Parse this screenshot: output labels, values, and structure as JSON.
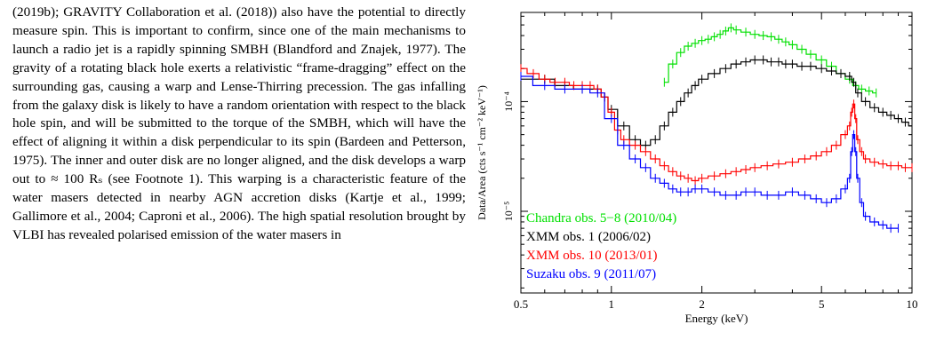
{
  "body_text": "(2019b); GRAVITY Collaboration et al. (2018)) also have the potential to directly measure spin. This is important to confirm, since one of the main mechanisms to launch a radio jet is a rapidly spinning SMBH (Blandford and Znajek, 1977). The gravity of a rotating black hole exerts a relativistic “frame-dragging” effect on the surrounding gas, causing a warp and Lense-Thirring precession. The gas infalling from the galaxy disk is likely to have a random orientation with respect to the black hole spin, and will be submitted to the torque of the SMBH, which will have the effect of aligning it within a disk perpendicular to its spin (Bardeen and Petterson, 1975). The inner and outer disk are no longer aligned, and the disk develops a warp out to ≈ 100 Rₛ (see Footnote 1). This warping is a characteristic feature of the water masers detected in nearby AGN accretion disks (Kartje et al., 1999; Gallimore et al., 2004; Caproni et al., 2006). The high spatial resolution brought by VLBI has revealed polarised emission of the water masers in",
  "chart_data": {
    "type": "line",
    "xlabel": "Energy (keV)",
    "ylabel": "Data/Area (cts s⁻¹ cm⁻² keV⁻¹)",
    "x_scale": "log",
    "y_scale": "log",
    "xlim": [
      0.5,
      10
    ],
    "ylim": [
      1.8e-06,
      0.00065
    ],
    "x_ticks": [
      {
        "value": 0.5,
        "label": "0.5"
      },
      {
        "value": 1,
        "label": "1"
      },
      {
        "value": 2,
        "label": "2"
      },
      {
        "value": 5,
        "label": "5"
      },
      {
        "value": 10,
        "label": "10"
      }
    ],
    "y_ticks": [
      {
        "value": 0.0001,
        "label": "10⁻⁴"
      },
      {
        "value": 1e-05,
        "label": "10⁻⁵"
      }
    ],
    "legend_position": "bottom-left",
    "series": [
      {
        "name": "Chandra obs. 5−8 (2010/04)",
        "color": "#00e000",
        "x": [
          1.5,
          1.6,
          1.7,
          1.8,
          1.9,
          2.0,
          2.1,
          2.2,
          2.3,
          2.4,
          2.5,
          2.6,
          2.8,
          3.0,
          3.2,
          3.4,
          3.6,
          3.8,
          4.0,
          4.3,
          4.6,
          5.0,
          5.4,
          5.8,
          6.2,
          6.5,
          6.8,
          7.2,
          7.6
        ],
        "y": [
          0.00015,
          0.00022,
          0.00028,
          0.00032,
          0.00034,
          0.00036,
          0.00037,
          0.00039,
          0.00041,
          0.00044,
          0.00047,
          0.00045,
          0.00043,
          0.00041,
          0.0004,
          0.00039,
          0.00037,
          0.00035,
          0.00033,
          0.0003,
          0.00027,
          0.00024,
          0.00021,
          0.00018,
          0.00016,
          0.00014,
          0.00013,
          0.000125,
          0.00012
        ]
      },
      {
        "name": "XMM obs. 1 (2006/02)",
        "color": "#000000",
        "x": [
          0.5,
          0.6,
          0.7,
          0.8,
          0.9,
          0.95,
          1.0,
          1.1,
          1.2,
          1.3,
          1.4,
          1.5,
          1.6,
          1.7,
          1.8,
          1.9,
          2.0,
          2.2,
          2.4,
          2.6,
          2.8,
          3.0,
          3.2,
          3.4,
          3.6,
          3.8,
          4.0,
          4.3,
          4.6,
          5.0,
          5.4,
          5.8,
          6.2,
          6.4,
          6.6,
          7.0,
          7.5,
          8.0,
          8.5,
          9.0,
          9.5,
          10.0
        ],
        "y": [
          0.00016,
          0.00016,
          0.00014,
          0.00013,
          0.00013,
          0.00011,
          8.5e-05,
          6e-05,
          4.5e-05,
          4e-05,
          4.5e-05,
          6e-05,
          8e-05,
          0.0001,
          0.00012,
          0.00014,
          0.00016,
          0.00018,
          0.0002,
          0.00022,
          0.00023,
          0.00024,
          0.00024,
          0.00023,
          0.00023,
          0.00022,
          0.00022,
          0.00021,
          0.00021,
          0.0002,
          0.00019,
          0.00018,
          0.00017,
          0.00015,
          0.00012,
          0.0001,
          8.8e-05,
          8e-05,
          7.5e-05,
          7e-05,
          6.5e-05,
          6e-05
        ]
      },
      {
        "name": "XMM obs. 10 (2013/01)",
        "color": "#ff0000",
        "x": [
          0.5,
          0.55,
          0.6,
          0.65,
          0.7,
          0.75,
          0.8,
          0.85,
          0.9,
          0.95,
          1.0,
          1.05,
          1.1,
          1.2,
          1.3,
          1.4,
          1.5,
          1.6,
          1.7,
          1.8,
          1.9,
          2.0,
          2.2,
          2.4,
          2.6,
          2.8,
          3.0,
          3.3,
          3.6,
          4.0,
          4.4,
          4.8,
          5.2,
          5.6,
          6.0,
          6.2,
          6.3,
          6.4,
          6.5,
          6.6,
          6.8,
          7.0,
          7.5,
          8.0,
          8.5,
          9.0,
          9.5,
          10.0
        ],
        "y": [
          0.0002,
          0.00018,
          0.00016,
          0.00015,
          0.00015,
          0.00014,
          0.00014,
          0.00014,
          0.00013,
          0.00011,
          8e-05,
          5.5e-05,
          4.5e-05,
          4e-05,
          3.5e-05,
          3e-05,
          2.6e-05,
          2.3e-05,
          2.1e-05,
          2e-05,
          1.9e-05,
          2e-05,
          2.1e-05,
          2.2e-05,
          2.3e-05,
          2.4e-05,
          2.5e-05,
          2.6e-05,
          2.7e-05,
          2.8e-05,
          3e-05,
          3.2e-05,
          3.5e-05,
          4e-05,
          5e-05,
          6e-05,
          8e-05,
          9.5e-05,
          7e-05,
          4.5e-05,
          3.5e-05,
          3e-05,
          2.8e-05,
          2.7e-05,
          2.6e-05,
          2.6e-05,
          2.5e-05,
          2.5e-05
        ]
      },
      {
        "name": "Suzaku obs. 9 (2011/07)",
        "color": "#0000ff",
        "x": [
          0.5,
          0.6,
          0.7,
          0.8,
          0.9,
          1.0,
          1.1,
          1.2,
          1.3,
          1.4,
          1.5,
          1.6,
          1.7,
          1.8,
          1.9,
          2.0,
          2.2,
          2.4,
          2.6,
          2.8,
          3.0,
          3.3,
          3.6,
          4.0,
          4.4,
          4.8,
          5.2,
          5.6,
          6.0,
          6.2,
          6.3,
          6.4,
          6.5,
          6.6,
          6.8,
          7.0,
          7.5,
          8.0,
          8.5,
          9.0
        ],
        "y": [
          0.00017,
          0.00014,
          0.00013,
          0.00013,
          0.00012,
          7e-05,
          4e-05,
          3e-05,
          2.5e-05,
          2e-05,
          1.8e-05,
          1.6e-05,
          1.5e-05,
          1.5e-05,
          1.6e-05,
          1.6e-05,
          1.5e-05,
          1.4e-05,
          1.4e-05,
          1.5e-05,
          1.5e-05,
          1.4e-05,
          1.4e-05,
          1.5e-05,
          1.4e-05,
          1.3e-05,
          1.2e-05,
          1.3e-05,
          1.6e-05,
          2e-05,
          3.5e-05,
          5e-05,
          3.5e-05,
          2e-05,
          1.2e-05,
          9e-06,
          8e-06,
          7.5e-06,
          7e-06,
          7e-06
        ]
      }
    ]
  }
}
